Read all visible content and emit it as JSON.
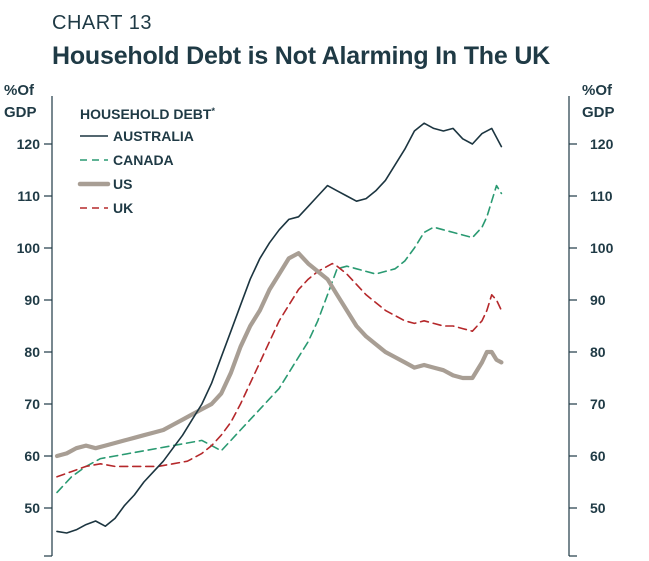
{
  "header": {
    "label": "CHART 13",
    "title": "Household Debt is Not Alarming In The UK"
  },
  "chart_data": {
    "type": "line",
    "title": "Household Debt is Not Alarming In The UK",
    "left_unit": "%Of",
    "left_unit_2": "GDP",
    "right_unit": "%Of",
    "right_unit_2": "GDP",
    "ylim": [
      41,
      126
    ],
    "yticks": [
      50,
      60,
      70,
      80,
      90,
      100,
      110,
      120
    ],
    "ytick_labels": [
      "50",
      "60",
      "70",
      "80",
      "90",
      "100",
      "110",
      "120"
    ],
    "xlim": [
      0,
      100
    ],
    "legend_title": "HOUSEHOLD DEBT",
    "legend_title_mark": "*",
    "series": [
      {
        "name": "AUSTRALIA",
        "color": "#1c3540",
        "style": "solid",
        "points": [
          [
            0,
            45.5
          ],
          [
            2,
            45.2
          ],
          [
            4,
            45.8
          ],
          [
            6,
            46.8
          ],
          [
            8,
            47.5
          ],
          [
            10,
            46.5
          ],
          [
            12,
            48
          ],
          [
            14,
            50.5
          ],
          [
            16,
            52.5
          ],
          [
            18,
            55
          ],
          [
            20,
            57
          ],
          [
            22,
            59
          ],
          [
            24,
            61.5
          ],
          [
            26,
            64
          ],
          [
            28,
            67
          ],
          [
            30,
            70
          ],
          [
            32,
            74
          ],
          [
            34,
            79
          ],
          [
            36,
            84
          ],
          [
            38,
            89
          ],
          [
            40,
            94
          ],
          [
            42,
            98
          ],
          [
            44,
            101
          ],
          [
            46,
            103.5
          ],
          [
            48,
            105.5
          ],
          [
            50,
            106
          ],
          [
            52,
            108
          ],
          [
            54,
            110
          ],
          [
            56,
            112
          ],
          [
            58,
            111
          ],
          [
            60,
            110
          ],
          [
            62,
            109
          ],
          [
            64,
            109.5
          ],
          [
            66,
            111
          ],
          [
            68,
            113
          ],
          [
            70,
            116
          ],
          [
            72,
            119
          ],
          [
            74,
            122.5
          ],
          [
            76,
            124
          ],
          [
            78,
            123
          ],
          [
            80,
            122.5
          ],
          [
            82,
            123
          ],
          [
            84,
            121
          ],
          [
            86,
            120
          ],
          [
            88,
            122
          ],
          [
            90,
            123
          ],
          [
            92,
            119.5
          ]
        ]
      },
      {
        "name": "CANADA",
        "color": "#2a9a72",
        "style": "dashed",
        "points": [
          [
            0,
            53
          ],
          [
            3,
            56
          ],
          [
            6,
            58
          ],
          [
            9,
            59.5
          ],
          [
            12,
            60
          ],
          [
            15,
            60.5
          ],
          [
            18,
            61
          ],
          [
            21,
            61.5
          ],
          [
            24,
            62
          ],
          [
            27,
            62.5
          ],
          [
            30,
            63
          ],
          [
            32,
            62
          ],
          [
            34,
            61
          ],
          [
            36,
            63
          ],
          [
            38,
            65
          ],
          [
            40,
            67
          ],
          [
            42,
            69
          ],
          [
            44,
            71
          ],
          [
            46,
            73
          ],
          [
            48,
            76
          ],
          [
            50,
            79
          ],
          [
            52,
            82
          ],
          [
            54,
            86
          ],
          [
            56,
            91
          ],
          [
            58,
            96
          ],
          [
            60,
            96.5
          ],
          [
            62,
            96
          ],
          [
            64,
            95.5
          ],
          [
            66,
            95
          ],
          [
            68,
            95.5
          ],
          [
            70,
            96
          ],
          [
            72,
            97.5
          ],
          [
            74,
            100
          ],
          [
            76,
            103
          ],
          [
            78,
            104
          ],
          [
            80,
            103.5
          ],
          [
            82,
            103
          ],
          [
            84,
            102.5
          ],
          [
            86,
            102
          ],
          [
            88,
            104
          ],
          [
            89,
            106
          ],
          [
            90,
            109
          ],
          [
            91,
            112
          ],
          [
            92,
            110.5
          ]
        ]
      },
      {
        "name": "US",
        "color": "#a89e94",
        "style": "solid-thick",
        "points": [
          [
            0,
            60
          ],
          [
            2,
            60.5
          ],
          [
            4,
            61.5
          ],
          [
            6,
            62
          ],
          [
            8,
            61.5
          ],
          [
            10,
            62
          ],
          [
            12,
            62.5
          ],
          [
            14,
            63
          ],
          [
            16,
            63.5
          ],
          [
            18,
            64
          ],
          [
            20,
            64.5
          ],
          [
            22,
            65
          ],
          [
            24,
            66
          ],
          [
            26,
            67
          ],
          [
            28,
            68
          ],
          [
            30,
            69
          ],
          [
            32,
            70
          ],
          [
            34,
            72
          ],
          [
            36,
            76
          ],
          [
            38,
            81
          ],
          [
            40,
            85
          ],
          [
            42,
            88
          ],
          [
            44,
            92
          ],
          [
            46,
            95
          ],
          [
            48,
            98
          ],
          [
            50,
            99
          ],
          [
            52,
            97
          ],
          [
            54,
            95.5
          ],
          [
            56,
            94
          ],
          [
            58,
            91
          ],
          [
            60,
            88
          ],
          [
            62,
            85
          ],
          [
            64,
            83
          ],
          [
            66,
            81.5
          ],
          [
            68,
            80
          ],
          [
            70,
            79
          ],
          [
            72,
            78
          ],
          [
            74,
            77
          ],
          [
            76,
            77.5
          ],
          [
            78,
            77
          ],
          [
            80,
            76.5
          ],
          [
            82,
            75.5
          ],
          [
            84,
            75
          ],
          [
            86,
            75
          ],
          [
            88,
            78
          ],
          [
            89,
            80
          ],
          [
            90,
            80
          ],
          [
            91,
            78.5
          ],
          [
            92,
            78
          ]
        ]
      },
      {
        "name": "UK",
        "color": "#b5282b",
        "style": "dashed",
        "points": [
          [
            0,
            56
          ],
          [
            3,
            57
          ],
          [
            6,
            58
          ],
          [
            9,
            58.5
          ],
          [
            12,
            58
          ],
          [
            15,
            58
          ],
          [
            18,
            58
          ],
          [
            21,
            58
          ],
          [
            24,
            58.5
          ],
          [
            27,
            59
          ],
          [
            30,
            60.5
          ],
          [
            32,
            62
          ],
          [
            34,
            64
          ],
          [
            36,
            66.5
          ],
          [
            38,
            70
          ],
          [
            40,
            74
          ],
          [
            42,
            78
          ],
          [
            44,
            82
          ],
          [
            46,
            86
          ],
          [
            48,
            89
          ],
          [
            50,
            92
          ],
          [
            52,
            94
          ],
          [
            54,
            95.5
          ],
          [
            56,
            96.5
          ],
          [
            57,
            97
          ],
          [
            58,
            96.5
          ],
          [
            60,
            95
          ],
          [
            62,
            93
          ],
          [
            64,
            91
          ],
          [
            66,
            89.5
          ],
          [
            68,
            88
          ],
          [
            70,
            87
          ],
          [
            72,
            86
          ],
          [
            74,
            85.5
          ],
          [
            76,
            86
          ],
          [
            78,
            85.5
          ],
          [
            80,
            85
          ],
          [
            82,
            85
          ],
          [
            84,
            84.5
          ],
          [
            86,
            84
          ],
          [
            88,
            86
          ],
          [
            89,
            88
          ],
          [
            90,
            91
          ],
          [
            91,
            90
          ],
          [
            92,
            88
          ]
        ]
      }
    ]
  }
}
